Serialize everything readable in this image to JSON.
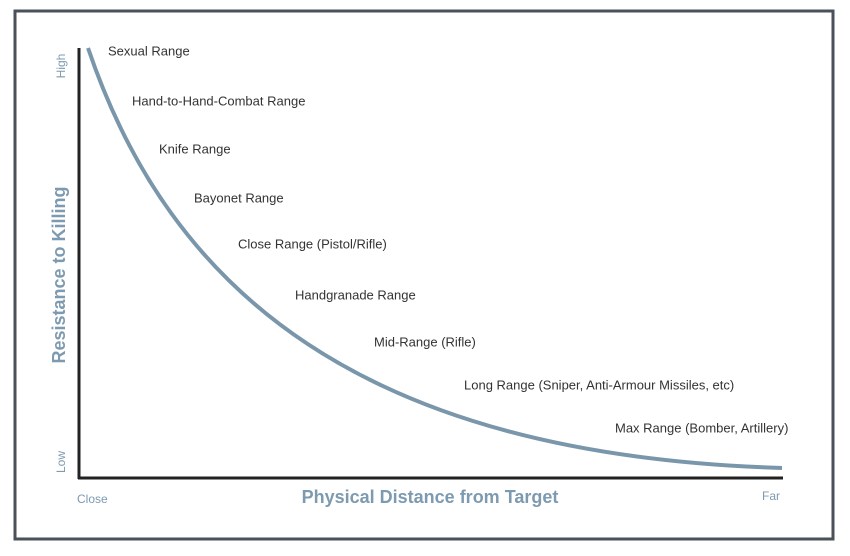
{
  "axes": {
    "y_title": "Resistance to Killing",
    "y_high": "High",
    "y_low": "Low",
    "x_title": "Physical Distance from Target",
    "x_close": "Close",
    "x_far": "Far"
  },
  "ranges": [
    "Sexual Range",
    "Hand-to-Hand-Combat Range",
    "Knife Range",
    "Bayonet Range",
    "Close Range (Pistol/Rifle)",
    "Handgranade Range",
    "Mid-Range (Rifle)",
    "Long Range (Sniper, Anti-Armour Missiles, etc)",
    "Max Range (Bomber, Artillery)"
  ]
}
